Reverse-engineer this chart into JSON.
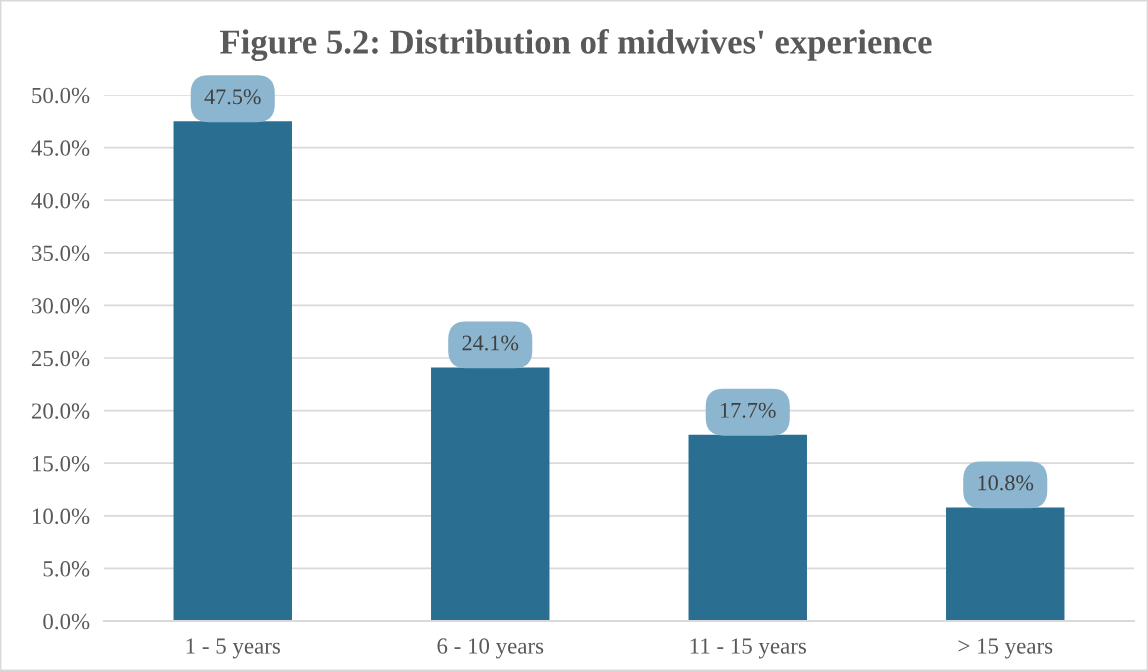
{
  "chart_data": {
    "type": "bar",
    "title": "Figure 5.2: Distribution of midwives' experience",
    "categories": [
      "1 - 5 years",
      "6 - 10 years",
      "11 - 15 years",
      "> 15 years"
    ],
    "values": [
      47.5,
      24.1,
      17.7,
      10.8
    ],
    "color": "#2a6f92",
    "value_labels": [
      "47.5%",
      "24.1%",
      "17.7%",
      "10.8%"
    ],
    "ylim": [
      0,
      50
    ],
    "yticks": [
      {
        "value": 0,
        "label": "0.0%"
      },
      {
        "value": 5,
        "label": "5.0%"
      },
      {
        "value": 10,
        "label": "10.0%"
      },
      {
        "value": 15,
        "label": "15.0%"
      },
      {
        "value": 20,
        "label": "20.0%"
      },
      {
        "value": 25,
        "label": "25.0%"
      },
      {
        "value": 30,
        "label": "30.0%"
      },
      {
        "value": 35,
        "label": "35.0%"
      },
      {
        "value": 40,
        "label": "40.0%"
      },
      {
        "value": 45,
        "label": "45.0%"
      },
      {
        "value": 50,
        "label": "50.0%"
      }
    ],
    "grid": "y"
  }
}
